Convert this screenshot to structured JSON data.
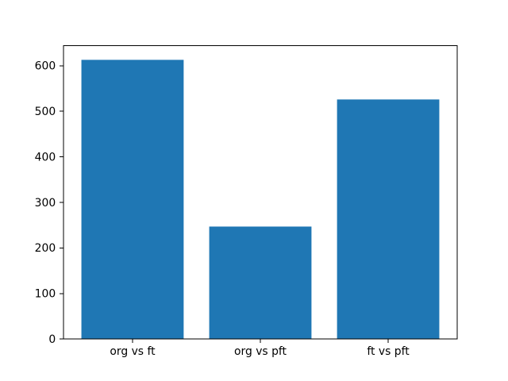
{
  "figure": {
    "background": "#ffffff"
  },
  "chart_data": {
    "type": "bar",
    "title": "",
    "xlabel": "",
    "ylabel": "",
    "categories": [
      "org vs ft",
      "org vs pft",
      "ft vs pft"
    ],
    "values": [
      613,
      247,
      526
    ],
    "bar_color": "#1f77b4",
    "bar_width": 0.8,
    "yticks": [
      0,
      100,
      200,
      300,
      400,
      500,
      600
    ],
    "ytick_labels": [
      "0",
      "100",
      "200",
      "300",
      "400",
      "500",
      "600"
    ],
    "ylim": [
      0,
      644
    ],
    "xlim": [
      -0.54,
      2.54
    ],
    "grid": false,
    "legend": "none",
    "spine_color": "#000000",
    "tick_label_color": "#000000"
  }
}
